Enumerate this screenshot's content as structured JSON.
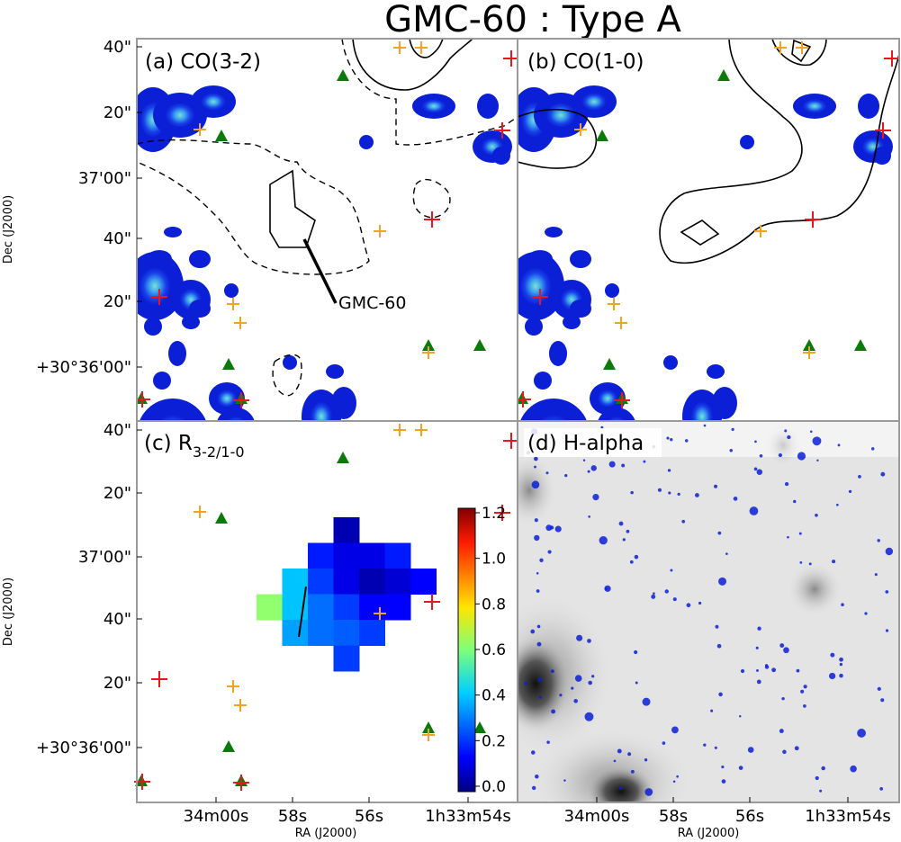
{
  "chart_data": {
    "type": "heatmap",
    "title": "GMC-60 : Type A",
    "xlabel": "RA (J2000)",
    "ylabel": "Dec (J2000)",
    "x_ticks": [
      "34m00s",
      "58s",
      "56s",
      "1h33m54s"
    ],
    "y_ticks": [
      "40\"",
      "20\"",
      "37'00\"",
      "40\"",
      "20\"",
      "+30°36'00\""
    ],
    "panels": [
      {
        "label": "(a) CO(3-2)",
        "content": "intensity map with CO(1-0) contours (solid) and dashed contour"
      },
      {
        "label": "(b) CO(1-0)",
        "content": "intensity map with contours"
      },
      {
        "label": "(c) R",
        "subscript": "3-2/1-0",
        "content": "line ratio map"
      },
      {
        "label": "(d) H-alpha",
        "content": "greyscale H-alpha image"
      }
    ],
    "annotation": "GMC-60",
    "colorbar": {
      "ticks": [
        "1.2",
        "1.0",
        "0.8",
        "0.6",
        "0.4",
        "0.2",
        "0.0"
      ],
      "range": [
        0.0,
        1.2
      ],
      "colormap": "jet"
    },
    "ratio_grid": [
      {
        "col": 3,
        "row": 0,
        "value": 0.06
      },
      {
        "col": 2,
        "row": 1,
        "value": 0.18
      },
      {
        "col": 3,
        "row": 1,
        "value": 0.12
      },
      {
        "col": 4,
        "row": 1,
        "value": 0.12
      },
      {
        "col": 5,
        "row": 1,
        "value": 0.18
      },
      {
        "col": 1,
        "row": 2,
        "value": 0.38
      },
      {
        "col": 2,
        "row": 2,
        "value": 0.22
      },
      {
        "col": 3,
        "row": 2,
        "value": 0.12
      },
      {
        "col": 4,
        "row": 2,
        "value": 0.06
      },
      {
        "col": 5,
        "row": 2,
        "value": 0.1
      },
      {
        "col": 6,
        "row": 2,
        "value": 0.15
      },
      {
        "col": 0,
        "row": 3,
        "value": 0.62
      },
      {
        "col": 1,
        "row": 3,
        "value": 0.38
      },
      {
        "col": 2,
        "row": 3,
        "value": 0.28
      },
      {
        "col": 3,
        "row": 3,
        "value": 0.22
      },
      {
        "col": 4,
        "row": 3,
        "value": 0.15
      },
      {
        "col": 5,
        "row": 3,
        "value": 0.15
      },
      {
        "col": 1,
        "row": 4,
        "value": 0.34
      },
      {
        "col": 2,
        "row": 4,
        "value": 0.28
      },
      {
        "col": 3,
        "row": 4,
        "value": 0.26
      },
      {
        "col": 4,
        "row": 4,
        "value": 0.22
      },
      {
        "col": 3,
        "row": 5,
        "value": 0.22
      }
    ],
    "markers": {
      "red_plus": "red crosses",
      "orange_plus": "orange crosses",
      "green_triangle": "green triangles"
    }
  },
  "colors": {
    "red": "#e8161d",
    "orange": "#f2a322",
    "green": "#0b7a0b",
    "map_blue": "#0b1fd6",
    "frame": "#9a9a9a"
  }
}
